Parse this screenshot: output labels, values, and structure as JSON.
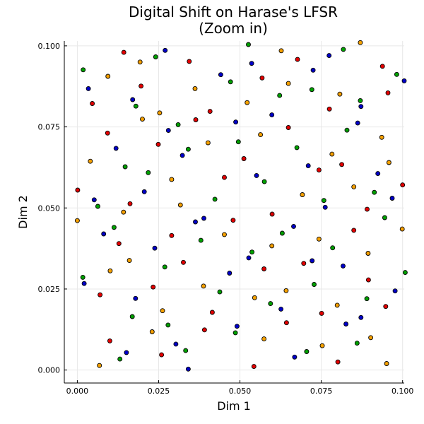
{
  "chart_data": {
    "type": "scatter",
    "title_line1": "Digital Shift on Harase's LFSR",
    "title_line2": "(Zoom in)",
    "xlabel": "Dim 1",
    "ylabel": "Dim 2",
    "xlim": [
      -0.004,
      0.1005
    ],
    "ylim": [
      -0.004,
      0.1015
    ],
    "xticks": [
      0.0,
      0.025,
      0.05,
      0.075,
      0.1
    ],
    "yticks": [
      0.0,
      0.025,
      0.05,
      0.075,
      0.1
    ],
    "xtick_labels": [
      "0.000",
      "0.025",
      "0.050",
      "0.075",
      "0.100"
    ],
    "ytick_labels": [
      "0.000",
      "0.025",
      "0.050",
      "0.075",
      "0.100"
    ],
    "grid": true,
    "legend": "none",
    "series": [
      {
        "color": "#e30000",
        "points": [
          [
            0.0143,
            0.098
          ],
          [
            0.0344,
            0.0952
          ],
          [
            0.0196,
            0.0876
          ],
          [
            0.0046,
            0.0822
          ],
          [
            0.0364,
            0.0772
          ],
          [
            0.0408,
            0.0798
          ],
          [
            0.0093,
            0.0731
          ],
          [
            0.0249,
            0.0696
          ],
          [
            0.0568,
            0.0901
          ],
          [
            0.0677,
            0.0958
          ],
          [
            0.0775,
            0.0805
          ],
          [
            0.0813,
            0.0634
          ],
          [
            0.0955,
            0.0855
          ],
          [
            0.0938,
            0.0937
          ],
          [
            0.0512,
            0.0652
          ],
          [
            0.0649,
            0.0748
          ],
          [
            0.0743,
            0.0617
          ],
          [
            0.0452,
            0.0594
          ],
          [
            0.0001,
            0.0555
          ],
          [
            0.0162,
            0.0513
          ],
          [
            0.0599,
            0.0481
          ],
          [
            0.0479,
            0.0462
          ],
          [
            0.0128,
            0.039
          ],
          [
            0.029,
            0.0415
          ],
          [
            0.0696,
            0.0329
          ],
          [
            0.085,
            0.0431
          ],
          [
            0.0891,
            0.0496
          ],
          [
            0.1,
            0.0571
          ],
          [
            0.0326,
            0.0332
          ],
          [
            0.0574,
            0.0312
          ],
          [
            0.007,
            0.0232
          ],
          [
            0.0233,
            0.0256
          ],
          [
            0.0415,
            0.0178
          ],
          [
            0.0391,
            0.0124
          ],
          [
            0.0643,
            0.0146
          ],
          [
            0.0751,
            0.0175
          ],
          [
            0.0895,
            0.0278
          ],
          [
            0.0948,
            0.0196
          ],
          [
            0.01,
            0.009
          ],
          [
            0.0259,
            0.0047
          ],
          [
            0.0543,
            0.0011
          ],
          [
            0.0801,
            0.0025
          ]
        ]
      },
      {
        "color": "#0000c8",
        "points": [
          [
            0.027,
            0.0986
          ],
          [
            0.0441,
            0.0911
          ],
          [
            0.0536,
            0.0946
          ],
          [
            0.0774,
            0.097
          ],
          [
            0.1005,
            0.0892
          ],
          [
            0.0034,
            0.0868
          ],
          [
            0.017,
            0.0834
          ],
          [
            0.0598,
            0.0787
          ],
          [
            0.0725,
            0.0925
          ],
          [
            0.0872,
            0.0813
          ],
          [
            0.028,
            0.0739
          ],
          [
            0.0487,
            0.0765
          ],
          [
            0.0862,
            0.0762
          ],
          [
            0.0119,
            0.0684
          ],
          [
            0.0323,
            0.0662
          ],
          [
            0.071,
            0.063
          ],
          [
            0.0924,
            0.0606
          ],
          [
            0.0551,
            0.06
          ],
          [
            0.0206,
            0.055
          ],
          [
            0.0052,
            0.0525
          ],
          [
            0.0762,
            0.0502
          ],
          [
            0.0968,
            0.053
          ],
          [
            0.0389,
            0.0468
          ],
          [
            0.0363,
            0.0457
          ],
          [
            0.0081,
            0.042
          ],
          [
            0.0665,
            0.0443
          ],
          [
            0.0238,
            0.0376
          ],
          [
            0.0527,
            0.0346
          ],
          [
            0.0468,
            0.0299
          ],
          [
            0.0722,
            0.0337
          ],
          [
            0.0817,
            0.0321
          ],
          [
            0.0021,
            0.0267
          ],
          [
            0.0179,
            0.0221
          ],
          [
            0.0626,
            0.0188
          ],
          [
            0.0826,
            0.0142
          ],
          [
            0.0491,
            0.0135
          ],
          [
            0.0872,
            0.0162
          ],
          [
            0.0977,
            0.0244
          ],
          [
            0.0303,
            0.008
          ],
          [
            0.0151,
            0.0054
          ],
          [
            0.0341,
            0.0003
          ],
          [
            0.0668,
            0.004
          ]
        ]
      },
      {
        "color": "#00a000",
        "points": [
          [
            0.0018,
            0.0926
          ],
          [
            0.0241,
            0.0966
          ],
          [
            0.0526,
            0.1004
          ],
          [
            0.0818,
            0.0989
          ],
          [
            0.0471,
            0.0889
          ],
          [
            0.0622,
            0.0847
          ],
          [
            0.0721,
            0.0865
          ],
          [
            0.087,
            0.0831
          ],
          [
            0.0982,
            0.0912
          ],
          [
            0.018,
            0.0814
          ],
          [
            0.031,
            0.0757
          ],
          [
            0.0829,
            0.074
          ],
          [
            0.0341,
            0.0681
          ],
          [
            0.0495,
            0.0704
          ],
          [
            0.0675,
            0.0686
          ],
          [
            0.0147,
            0.0627
          ],
          [
            0.0218,
            0.0609
          ],
          [
            0.0423,
            0.0527
          ],
          [
            0.0575,
            0.0581
          ],
          [
            0.0758,
            0.0523
          ],
          [
            0.0913,
            0.0548
          ],
          [
            0.0945,
            0.047
          ],
          [
            0.0063,
            0.0505
          ],
          [
            0.0113,
            0.044
          ],
          [
            0.038,
            0.04
          ],
          [
            0.063,
            0.0422
          ],
          [
            0.0785,
            0.0377
          ],
          [
            0.0537,
            0.0364
          ],
          [
            0.0269,
            0.0318
          ],
          [
            0.1008,
            0.0301
          ],
          [
            0.0017,
            0.0286
          ],
          [
            0.0438,
            0.0241
          ],
          [
            0.0728,
            0.0264
          ],
          [
            0.0594,
            0.0205
          ],
          [
            0.089,
            0.022
          ],
          [
            0.0169,
            0.0165
          ],
          [
            0.0279,
            0.0139
          ],
          [
            0.0486,
            0.0115
          ],
          [
            0.086,
            0.0083
          ],
          [
            0.0131,
            0.0034
          ],
          [
            0.0333,
            0.006
          ],
          [
            0.0705,
            0.0057
          ]
        ]
      },
      {
        "color": "#f5a000",
        "points": [
          [
            0.0094,
            0.0906
          ],
          [
            0.0193,
            0.095
          ],
          [
            0.0627,
            0.0985
          ],
          [
            0.087,
            0.101
          ],
          [
            0.0362,
            0.0868
          ],
          [
            0.0649,
            0.0884
          ],
          [
            0.0807,
            0.0851
          ],
          [
            0.0253,
            0.0793
          ],
          [
            0.02,
            0.0774
          ],
          [
            0.0522,
            0.0825
          ],
          [
            0.0563,
            0.0726
          ],
          [
            0.0402,
            0.0701
          ],
          [
            0.0783,
            0.0666
          ],
          [
            0.0936,
            0.0718
          ],
          [
            0.0958,
            0.064
          ],
          [
            0.004,
            0.0644
          ],
          [
            0.029,
            0.0588
          ],
          [
            0.085,
            0.0565
          ],
          [
            0.0692,
            0.0541
          ],
          [
            0.0142,
            0.0487
          ],
          [
            0.0317,
            0.0509
          ],
          [
            0.0,
            0.0461
          ],
          [
            0.0452,
            0.0418
          ],
          [
            0.0598,
            0.0383
          ],
          [
            0.0743,
            0.0404
          ],
          [
            0.0999,
            0.0435
          ],
          [
            0.0101,
            0.0306
          ],
          [
            0.016,
            0.0338
          ],
          [
            0.0388,
            0.0259
          ],
          [
            0.0642,
            0.0245
          ],
          [
            0.0894,
            0.036
          ],
          [
            0.0262,
            0.0183
          ],
          [
            0.0545,
            0.0223
          ],
          [
            0.0799,
            0.02
          ],
          [
            0.023,
            0.0118
          ],
          [
            0.0574,
            0.0096
          ],
          [
            0.0753,
            0.0075
          ],
          [
            0.0902,
            0.01
          ],
          [
            0.0068,
            0.0014
          ],
          [
            0.0951,
            0.002
          ]
        ]
      }
    ]
  }
}
